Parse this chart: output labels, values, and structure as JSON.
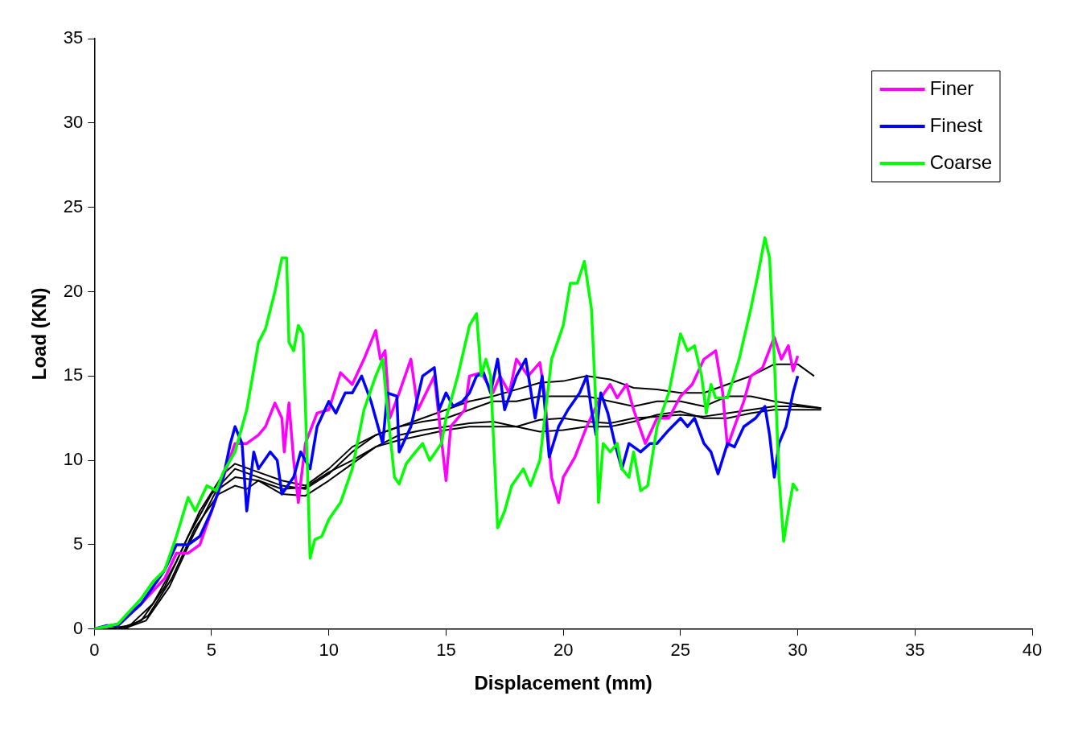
{
  "chart_data": {
    "type": "line",
    "xlabel": "Displacement (mm)",
    "ylabel": "Load (KN)",
    "xlim": [
      0,
      40
    ],
    "xticks": [
      0,
      5,
      10,
      15,
      20,
      25,
      30,
      35,
      40
    ],
    "ylim": [
      0,
      35
    ],
    "yticks": [
      0,
      5,
      10,
      15,
      20,
      25,
      30,
      35
    ],
    "grid": false,
    "legend": "top right",
    "marker": "none",
    "line_style": "solid",
    "series": [
      {
        "color": "#000000",
        "x": [
          0.5,
          1.5,
          2.5,
          3.5,
          4.5,
          5.5,
          6,
          7,
          8,
          9,
          10,
          11,
          12,
          13,
          14,
          15,
          16,
          17,
          18,
          19,
          20,
          21,
          22,
          23,
          24,
          25,
          26,
          27,
          28,
          29,
          30,
          30.7
        ],
        "values": [
          0,
          0.2,
          1.5,
          4,
          7,
          9.2,
          9.8,
          9.3,
          8.8,
          8.5,
          9.5,
          10.8,
          11.5,
          12,
          12.5,
          13,
          13.5,
          13.8,
          14.2,
          14.6,
          14.7,
          15,
          14.8,
          14.3,
          14.2,
          14,
          14,
          14.5,
          15,
          15.7,
          15.7,
          15
        ]
      },
      {
        "color": "#000000",
        "x": [
          1,
          2,
          3,
          4,
          5,
          6,
          7,
          8,
          9,
          10,
          11,
          12,
          13,
          14,
          15,
          16,
          17,
          18,
          19,
          20,
          21,
          22,
          23,
          24,
          25,
          26,
          27,
          28,
          29,
          30,
          31
        ],
        "values": [
          0,
          0.5,
          2.5,
          5.5,
          8,
          9.5,
          9,
          8.5,
          8.3,
          9.2,
          10.5,
          11.5,
          12,
          12.3,
          12.5,
          13,
          13.5,
          13.5,
          13.8,
          13.8,
          13.8,
          13.5,
          13.2,
          13.5,
          13.5,
          13.2,
          13.8,
          13.8,
          13.5,
          13.3,
          13.1
        ]
      },
      {
        "color": "#000000",
        "x": [
          1.2,
          2.2,
          3.2,
          4.2,
          5.2,
          6,
          7,
          8,
          9,
          10,
          11,
          12,
          13,
          14,
          15,
          16,
          17,
          18,
          19,
          20,
          21,
          22,
          23,
          24,
          25,
          26,
          27,
          28,
          29,
          30,
          31
        ],
        "values": [
          0,
          0.5,
          2.5,
          5.5,
          8.2,
          9,
          8.8,
          8,
          7.9,
          8.8,
          9.8,
          10.8,
          11.5,
          11.8,
          12,
          12.2,
          12.3,
          12,
          12.4,
          12.5,
          12.3,
          12.2,
          12.5,
          12.6,
          12.7,
          12.6,
          12.8,
          13,
          13.2,
          13.2,
          13.1
        ]
      },
      {
        "color": "#000000",
        "x": [
          1.3,
          2.3,
          3.3,
          4.3,
          5.3,
          6,
          6.5,
          7,
          8,
          9,
          10,
          11,
          12,
          13,
          14,
          15,
          16,
          17,
          18,
          19,
          20,
          21,
          22,
          23,
          24,
          25,
          26,
          27,
          28,
          29,
          30,
          31
        ],
        "values": [
          0,
          0.8,
          3,
          6,
          8,
          8.5,
          8.3,
          8.8,
          8.3,
          8.4,
          9.3,
          10,
          10.8,
          11.2,
          11.5,
          11.8,
          12,
          12,
          12,
          11.7,
          11.8,
          12,
          12,
          12.3,
          12.7,
          12.9,
          12.5,
          12.5,
          12.8,
          13,
          13,
          13
        ]
      },
      {
        "name": "Finer",
        "color": "#ff00ff",
        "x": [
          0,
          1,
          2,
          3,
          3.5,
          4,
          4.5,
          5,
          5.5,
          6,
          6.5,
          7,
          7.3,
          7.7,
          8,
          8.1,
          8.3,
          8.5,
          8.7,
          9,
          9.5,
          10,
          10.5,
          11,
          11.5,
          12,
          12.2,
          12.4,
          12.6,
          13,
          13.5,
          13.8,
          14.5,
          15,
          15.2,
          15.8,
          16,
          16.5,
          17,
          17.3,
          17.7,
          18,
          18.5,
          19,
          19.2,
          19.5,
          19.8,
          20,
          20.5,
          21,
          21.5,
          22,
          22.3,
          22.7,
          23,
          23.5,
          24,
          24.5,
          25,
          25.5,
          26,
          26.5,
          26.8,
          27,
          27.3,
          27.7,
          28,
          28.5,
          29,
          29.3,
          29.6,
          29.8,
          30
        ],
        "values": [
          0,
          0.3,
          1.5,
          3,
          4.5,
          4.5,
          5,
          7,
          9,
          11,
          11,
          11.5,
          12,
          13.4,
          12.5,
          10.5,
          13.4,
          10,
          7.5,
          11,
          12.8,
          13,
          15.2,
          14.5,
          16,
          17.7,
          16,
          16.5,
          12.5,
          14,
          16,
          13,
          15,
          8.8,
          12,
          13,
          15,
          15.2,
          14,
          15,
          14,
          16,
          15,
          15.8,
          14,
          9,
          7.5,
          9,
          10.2,
          12,
          13.5,
          14.5,
          13.7,
          14.5,
          13,
          11,
          12.5,
          12.5,
          13.8,
          14.5,
          16,
          16.5,
          14,
          10.8,
          12,
          13.5,
          15,
          15.5,
          17.3,
          16,
          16.8,
          15.3,
          16.2
        ]
      },
      {
        "name": "Finest",
        "color": "#0000ff",
        "x": [
          0,
          0.5,
          1,
          2,
          2.5,
          3,
          3.5,
          4,
          4.5,
          5,
          5.5,
          5.8,
          6,
          6.3,
          6.5,
          6.8,
          7,
          7.5,
          7.8,
          8,
          8.5,
          8.8,
          9.2,
          9.5,
          10,
          10.3,
          10.7,
          11,
          11.4,
          11.8,
          12.3,
          12.5,
          12.9,
          13,
          13.5,
          14,
          14.5,
          14.7,
          15,
          15.3,
          15.7,
          16,
          16.3,
          16.6,
          16.9,
          17.2,
          17.5,
          18,
          18.4,
          18.8,
          19.1,
          19.4,
          19.8,
          20.2,
          20.7,
          21,
          21.2,
          21.4,
          21.6,
          21.9,
          22.2,
          22.5,
          22.8,
          23.3,
          23.7,
          24,
          24.5,
          25,
          25.3,
          25.6,
          26,
          26.3,
          26.6,
          27,
          27.3,
          27.7,
          28.2,
          28.6,
          28.8,
          29,
          29.2,
          29.5,
          29.8,
          30
        ],
        "values": [
          0,
          0.2,
          0.2,
          1.5,
          2.5,
          3.5,
          5,
          5,
          5.5,
          7,
          9,
          11,
          12,
          11,
          7,
          10.5,
          9.5,
          10.5,
          10,
          8,
          9,
          10.5,
          9.5,
          12,
          13.5,
          12.8,
          14,
          14,
          15,
          13.5,
          11,
          14,
          13.8,
          10.5,
          12,
          15,
          15.5,
          13,
          14,
          13.2,
          13.5,
          14,
          15,
          15.2,
          14,
          16,
          13,
          15,
          16,
          12.5,
          15,
          10.2,
          12,
          13,
          14,
          15,
          13,
          11.5,
          14,
          12.8,
          11,
          9.5,
          11,
          10.5,
          11,
          11,
          11.8,
          12.5,
          12,
          12.5,
          11,
          10.5,
          9.2,
          11,
          10.8,
          12,
          12.5,
          13.2,
          11.5,
          9,
          11,
          12,
          14,
          15
        ]
      },
      {
        "name": "Coarse",
        "color": "#00ff00",
        "x": [
          0,
          1,
          2,
          2.5,
          3,
          3.5,
          4,
          4.3,
          4.8,
          5.2,
          5.5,
          6,
          6.5,
          7,
          7.3,
          7.7,
          8,
          8.2,
          8.3,
          8.5,
          8.7,
          8.9,
          9.1,
          9.2,
          9.4,
          9.7,
          10,
          10.5,
          11,
          11.5,
          12,
          12.3,
          12.5,
          12.8,
          13,
          13.3,
          13.7,
          14,
          14.3,
          14.8,
          15,
          15.5,
          16,
          16.3,
          16.5,
          16.7,
          16.9,
          17.2,
          17.5,
          17.8,
          18.3,
          18.6,
          19,
          19.5,
          20,
          20.3,
          20.6,
          20.9,
          21.2,
          21.4,
          21.5,
          21.7,
          22,
          22.3,
          22.5,
          22.8,
          23,
          23.3,
          23.6,
          24,
          24.5,
          25,
          25.3,
          25.6,
          25.9,
          26.1,
          26.3,
          26.5,
          27,
          27.5,
          28,
          28.3,
          28.6,
          28.8,
          29,
          29.2,
          29.4,
          29.6,
          29.8,
          30
        ],
        "values": [
          0,
          0.3,
          1.8,
          2.8,
          3.5,
          5.5,
          7.8,
          7,
          8.5,
          8.2,
          9.3,
          10.5,
          13,
          17,
          17.8,
          20,
          22,
          22,
          17,
          16.5,
          18,
          17.5,
          9,
          4.2,
          5.3,
          5.5,
          6.5,
          7.5,
          9.5,
          13,
          15,
          16,
          13,
          9,
          8.6,
          9.8,
          10.5,
          11,
          10,
          11,
          12.5,
          15,
          18,
          18.7,
          15,
          16,
          15,
          6,
          7,
          8.5,
          9.5,
          8.5,
          10,
          16,
          18,
          20.5,
          20.5,
          21.8,
          19,
          13,
          7.5,
          11,
          10.5,
          11,
          9.5,
          9,
          10.5,
          8.2,
          8.5,
          12,
          14,
          17.5,
          16.5,
          16.8,
          15,
          12.8,
          14.5,
          13.7,
          13.7,
          16,
          19,
          21,
          23.2,
          22,
          16,
          9,
          5.2,
          7,
          8.6,
          8.2
        ]
      }
    ]
  }
}
